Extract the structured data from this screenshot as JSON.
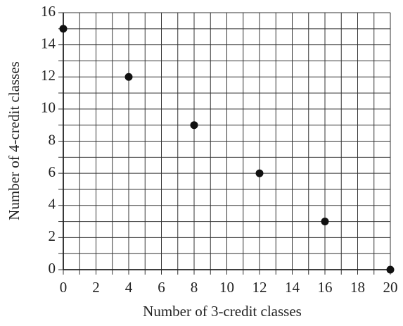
{
  "chart_data": {
    "type": "scatter",
    "xlabel": "Number of 3-credit classes",
    "ylabel": "Number of 4-credit classes",
    "x": [
      0,
      4,
      8,
      12,
      16,
      20
    ],
    "values": [
      15,
      12,
      9,
      6,
      3,
      0
    ],
    "color": "#111111",
    "xlim": [
      0,
      20
    ],
    "ylim": [
      0,
      16
    ],
    "xticks": [
      0,
      2,
      4,
      6,
      8,
      10,
      12,
      14,
      16,
      18,
      20
    ],
    "yticks": [
      0,
      2,
      4,
      6,
      8,
      10,
      12,
      14,
      16
    ],
    "xminorticks": [
      1,
      3,
      5,
      7,
      9,
      11,
      13,
      15,
      17,
      19
    ],
    "yminorticks": [
      1,
      3,
      5,
      7,
      9,
      11,
      13,
      15
    ],
    "grid": true
  }
}
